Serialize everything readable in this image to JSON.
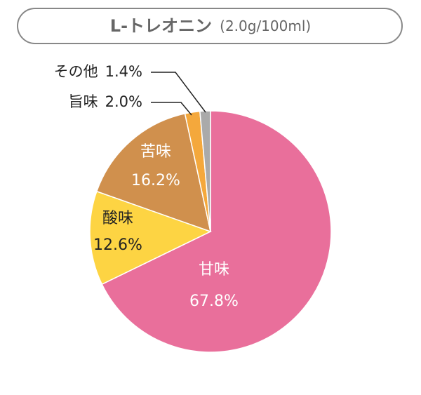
{
  "chart_data": {
    "type": "pie",
    "title": "L-トレオニン",
    "subtitle": "(2.0g/100ml)",
    "categories": [
      "甘味",
      "酸味",
      "苦味",
      "旨味",
      "その他"
    ],
    "values": [
      67.8,
      12.6,
      16.2,
      2.0,
      1.4
    ],
    "value_labels": [
      "67.8%",
      "12.6%",
      "16.2%",
      "2.0%",
      "1.4%"
    ],
    "colors": [
      "#e96f9b",
      "#fdd443",
      "#d0904d",
      "#f4a83c",
      "#aaaaaa"
    ]
  }
}
